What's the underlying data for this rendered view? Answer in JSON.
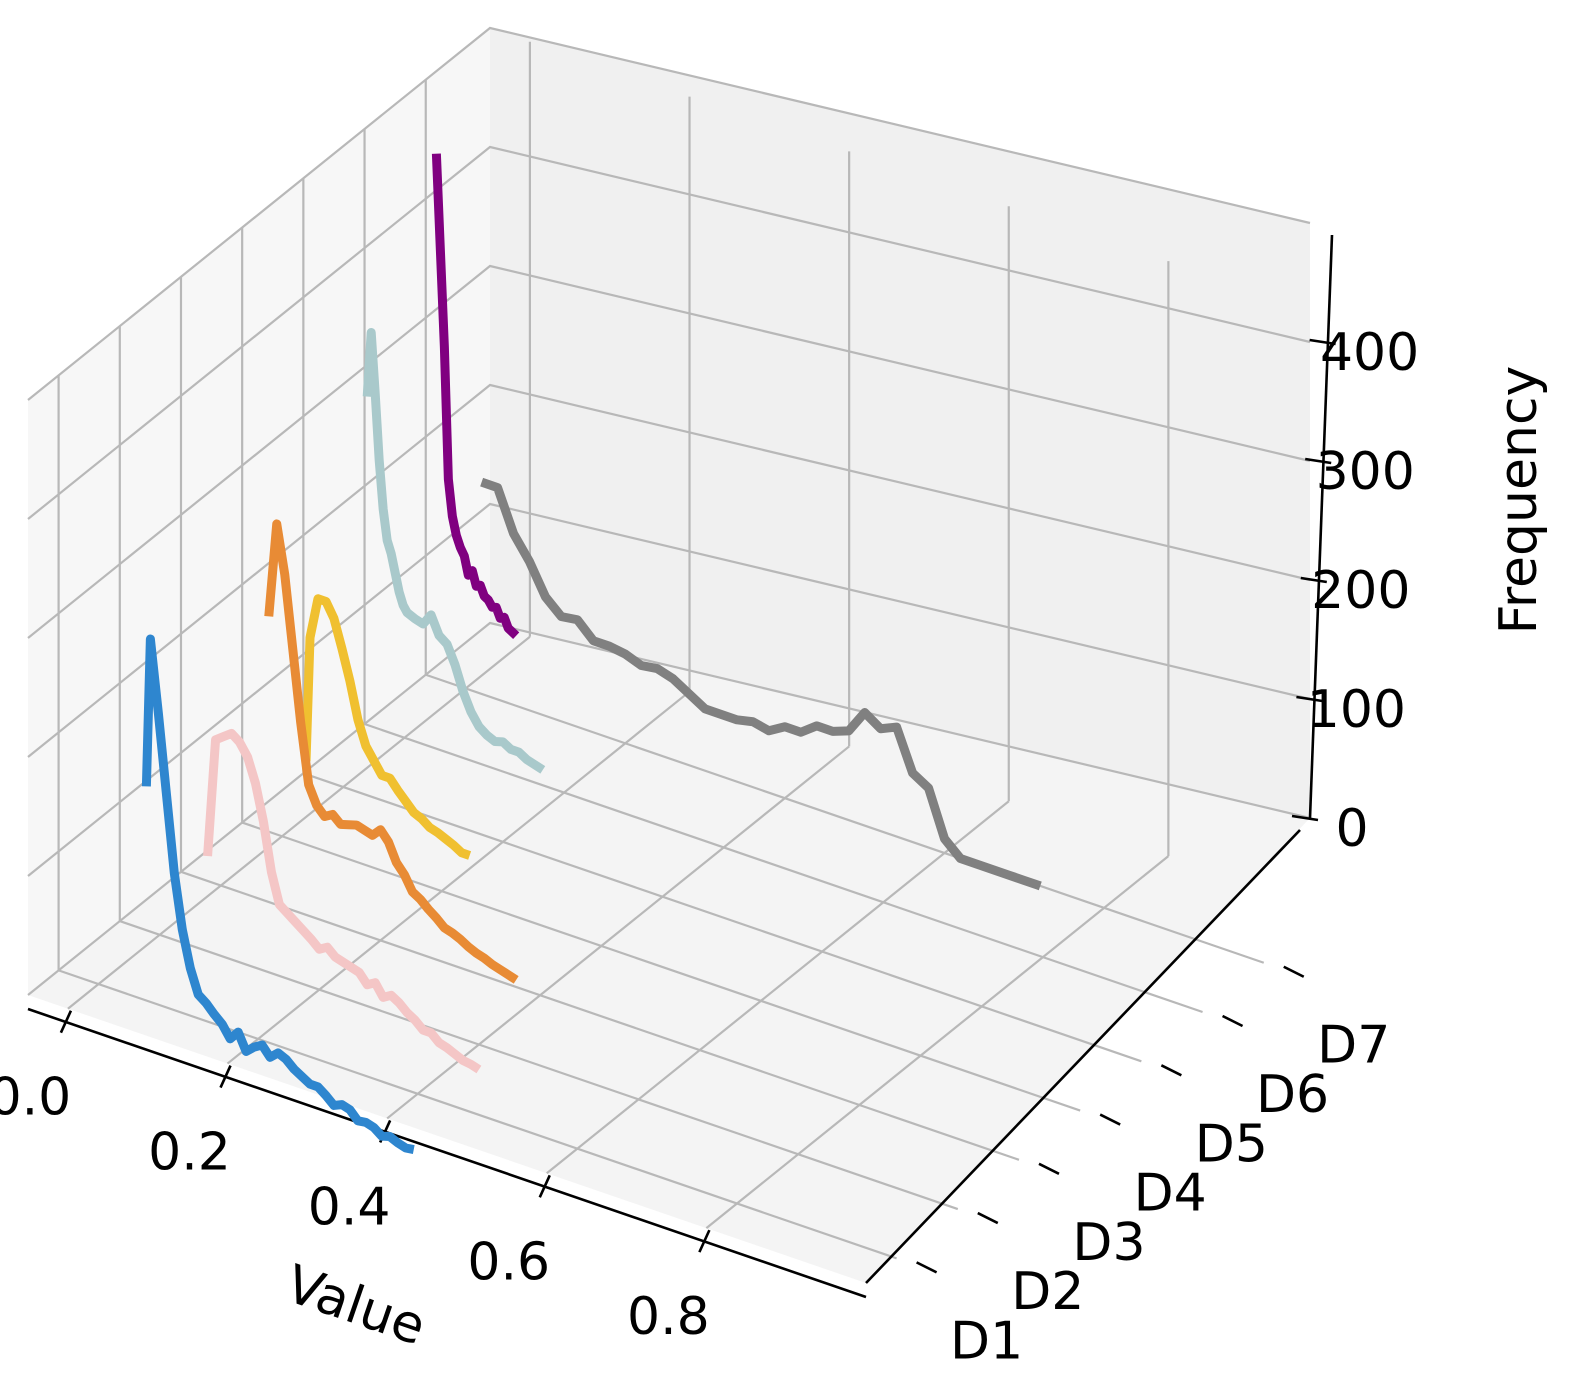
{
  "chart_data": {
    "type": "line",
    "projection": "3d",
    "xlabel": "Value",
    "ylabel": "",
    "zlabel": "Frequency",
    "x_ticks": [
      "0.0",
      "0.2",
      "0.4",
      "0.6",
      "0.8"
    ],
    "y_ticks": [
      "D1",
      "D2",
      "D3",
      "D4",
      "D5",
      "D6",
      "D7"
    ],
    "z_ticks": [
      "0",
      "100",
      "200",
      "300",
      "400"
    ],
    "xlim": [
      -0.05,
      1.0
    ],
    "zlim": [
      0,
      500
    ],
    "grid": true,
    "series": [
      {
        "color": "#2e86cf",
        "depth": 0,
        "x": [
          0.06,
          0.065,
          0.075,
          0.085,
          0.095,
          0.105,
          0.115,
          0.125,
          0.135,
          0.145,
          0.155,
          0.165,
          0.175,
          0.185,
          0.195,
          0.205,
          0.215,
          0.225,
          0.235,
          0.245,
          0.255,
          0.265,
          0.275,
          0.285,
          0.295,
          0.305,
          0.315,
          0.325,
          0.335,
          0.345,
          0.355,
          0.365,
          0.375,
          0.385,
          0.395
        ],
        "y": [
          180,
          305,
          245,
          180,
          115,
          70,
          40,
          20,
          15,
          8,
          2,
          -8,
          0,
          -14,
          -8,
          -4,
          -12,
          -6,
          -9,
          -15,
          -19,
          -23,
          -23,
          -28,
          -34,
          -31,
          -33,
          -40,
          -39,
          -41,
          -46,
          -44,
          -47,
          -49,
          -48
        ]
      },
      {
        "color": "#f4c6c6",
        "depth": 1,
        "x": [
          0.06,
          0.07,
          0.08,
          0.09,
          0.1,
          0.11,
          0.12,
          0.13,
          0.14,
          0.15,
          0.16,
          0.17,
          0.18,
          0.19,
          0.2,
          0.21,
          0.22,
          0.23,
          0.24,
          0.25,
          0.26,
          0.27,
          0.28,
          0.29,
          0.3,
          0.31,
          0.32,
          0.33,
          0.34,
          0.35,
          0.36,
          0.37,
          0.38,
          0.39,
          0.4
        ],
        "y": [
          80,
          180,
          185,
          190,
          185,
          175,
          155,
          125,
          85,
          60,
          55,
          50,
          45,
          40,
          34,
          38,
          32,
          30,
          28,
          26,
          18,
          22,
          12,
          16,
          12,
          6,
          2,
          -4,
          -4,
          -10,
          -12,
          -15,
          -18,
          -19,
          -21
        ]
      },
      {
        "color": "#e88b35",
        "depth": 2,
        "x": [
          0.06,
          0.07,
          0.08,
          0.09,
          0.1,
          0.11,
          0.12,
          0.13,
          0.14,
          0.15,
          0.16,
          0.17,
          0.18,
          0.19,
          0.2,
          0.21,
          0.22,
          0.23,
          0.24,
          0.25,
          0.26,
          0.27,
          0.28,
          0.29,
          0.3,
          0.31,
          0.32,
          0.33,
          0.34,
          0.35,
          0.36,
          0.37
        ],
        "y": [
          240,
          320,
          280,
          220,
          160,
          110,
          95,
          88,
          92,
          86,
          88,
          90,
          88,
          86,
          93,
          85,
          70,
          62,
          50,
          46,
          40,
          35,
          29,
          27,
          24,
          20,
          17,
          15,
          12,
          10,
          8,
          6
        ]
      },
      {
        "color": "#f0c030",
        "depth": 3,
        "x": [
          0.03,
          0.035,
          0.045,
          0.055,
          0.065,
          0.075,
          0.085,
          0.095,
          0.105,
          0.115,
          0.125,
          0.135,
          0.145,
          0.155,
          0.165,
          0.175,
          0.185,
          0.195,
          0.205,
          0.215,
          0.225,
          0.235
        ],
        "y": [
          70,
          175,
          210,
          210,
          198,
          175,
          150,
          120,
          100,
          90,
          80,
          80,
          72,
          65,
          58,
          55,
          50,
          48,
          45,
          42,
          38,
          38
        ]
      },
      {
        "color": "#a9c9cb",
        "depth": 4,
        "x": [
          0.03,
          0.035,
          0.04,
          0.045,
          0.05,
          0.055,
          0.06,
          0.065,
          0.07,
          0.075,
          0.08,
          0.09,
          0.1,
          0.11,
          0.12,
          0.13,
          0.14,
          0.15,
          0.16,
          0.17,
          0.18,
          0.19,
          0.2,
          0.21,
          0.22,
          0.23,
          0.24,
          0.25
        ],
        "y": [
          335,
          390,
          340,
          285,
          245,
          220,
          210,
          195,
          180,
          170,
          165,
          162,
          160,
          170,
          155,
          150,
          135,
          115,
          100,
          90,
          85,
          82,
          84,
          80,
          80,
          76,
          74,
          72
        ]
      },
      {
        "color": "#800080",
        "depth": 5,
        "x": [
          0.04,
          0.045,
          0.05,
          0.055,
          0.06,
          0.065,
          0.07,
          0.075,
          0.08,
          0.085,
          0.09,
          0.095,
          0.1,
          0.105,
          0.11,
          0.115,
          0.12,
          0.125,
          0.13,
          0.135,
          0.14
        ],
        "y": [
          500,
          420,
          340,
          230,
          200,
          185,
          176,
          170,
          155,
          160,
          148,
          150,
          142,
          140,
          135,
          136,
          128,
          130,
          122,
          120,
          118
        ]
      },
      {
        "color": "#808080",
        "depth": 6,
        "x": [
          0.02,
          0.04,
          0.06,
          0.08,
          0.1,
          0.12,
          0.14,
          0.16,
          0.18,
          0.2,
          0.22,
          0.24,
          0.26,
          0.28,
          0.3,
          0.32,
          0.34,
          0.36,
          0.38,
          0.4,
          0.42,
          0.44,
          0.46,
          0.48,
          0.5,
          0.52,
          0.54,
          0.56,
          0.58,
          0.6,
          0.62,
          0.64,
          0.66,
          0.68,
          0.7,
          0.72
        ],
        "y": [
          178,
          178,
          144,
          125,
          100,
          88,
          90,
          77,
          77,
          75,
          70,
          72,
          68,
          60,
          52,
          52,
          52,
          55,
          52,
          60,
          60,
          70,
          70,
          75,
          95,
          86,
          92,
          58,
          50,
          12,
          0,
          0,
          0,
          0,
          0,
          0
        ]
      }
    ]
  }
}
